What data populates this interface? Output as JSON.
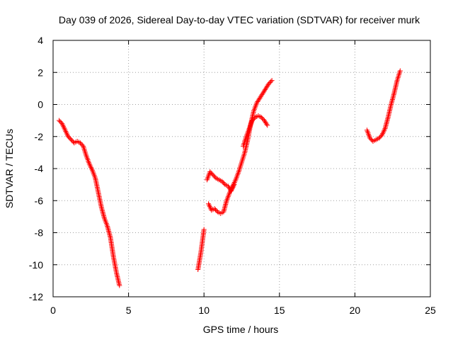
{
  "chart_data": {
    "type": "scatter",
    "title": "Day 039 of 2026, Sidereal Day-to-day VTEC variation (SDTVAR) for receiver murk",
    "xlabel": "GPS time / hours",
    "ylabel": "SDTVAR / TECUs",
    "xlim": [
      0,
      25
    ],
    "ylim": [
      -12,
      4
    ],
    "xticks": [
      0,
      5,
      10,
      15,
      20,
      25
    ],
    "yticks": [
      -12,
      -10,
      -8,
      -6,
      -4,
      -2,
      0,
      2,
      4
    ],
    "xtick_labels": [
      "0",
      "5",
      "10",
      "15",
      "20",
      "25"
    ],
    "ytick_labels": [
      "-12",
      "-10",
      "-8",
      "-6",
      "-4",
      "-2",
      "0",
      "2",
      "4"
    ],
    "grid": true,
    "marker": "plus",
    "color": "#ff0000",
    "series": [
      {
        "points": [
          [
            0.4,
            -1.0
          ],
          [
            0.6,
            -1.2
          ],
          [
            0.8,
            -1.6
          ],
          [
            1.0,
            -2.0
          ],
          [
            1.2,
            -2.2
          ],
          [
            1.4,
            -2.4
          ],
          [
            1.6,
            -2.3
          ],
          [
            1.8,
            -2.4
          ],
          [
            2.0,
            -2.6
          ],
          [
            2.2,
            -3.2
          ],
          [
            2.4,
            -3.7
          ],
          [
            2.6,
            -4.1
          ],
          [
            2.8,
            -4.6
          ],
          [
            3.0,
            -5.5
          ],
          [
            3.2,
            -6.4
          ],
          [
            3.4,
            -7.1
          ],
          [
            3.6,
            -7.6
          ],
          [
            3.8,
            -8.3
          ],
          [
            4.0,
            -9.5
          ],
          [
            4.2,
            -10.5
          ],
          [
            4.4,
            -11.3
          ]
        ]
      },
      {
        "points": [
          [
            9.6,
            -10.3
          ],
          [
            9.8,
            -9.2
          ],
          [
            10.0,
            -7.8
          ]
        ]
      },
      {
        "points": [
          [
            10.2,
            -4.7
          ],
          [
            10.4,
            -4.2
          ],
          [
            10.6,
            -4.4
          ],
          [
            10.8,
            -4.6
          ],
          [
            11.0,
            -4.7
          ],
          [
            11.2,
            -4.8
          ],
          [
            11.4,
            -5.0
          ],
          [
            11.6,
            -5.1
          ],
          [
            11.8,
            -5.4
          ],
          [
            12.0,
            -5.0
          ]
        ]
      },
      {
        "points": [
          [
            10.3,
            -6.2
          ],
          [
            10.5,
            -6.6
          ],
          [
            10.7,
            -6.5
          ],
          [
            10.9,
            -6.7
          ],
          [
            11.1,
            -6.8
          ],
          [
            11.3,
            -6.7
          ],
          [
            11.5,
            -6.0
          ],
          [
            11.7,
            -5.5
          ],
          [
            11.9,
            -5.1
          ],
          [
            12.1,
            -4.7
          ],
          [
            12.3,
            -4.2
          ],
          [
            12.5,
            -3.6
          ],
          [
            12.7,
            -3.0
          ],
          [
            12.9,
            -2.2
          ],
          [
            13.1,
            -1.2
          ],
          [
            13.3,
            -0.4
          ],
          [
            13.5,
            0.1
          ],
          [
            13.7,
            0.4
          ],
          [
            13.9,
            0.7
          ],
          [
            14.1,
            1.0
          ],
          [
            14.3,
            1.3
          ],
          [
            14.5,
            1.5
          ]
        ]
      },
      {
        "points": [
          [
            12.6,
            -2.6
          ],
          [
            12.8,
            -2.0
          ],
          [
            13.0,
            -1.5
          ],
          [
            13.2,
            -1.0
          ],
          [
            13.4,
            -0.8
          ],
          [
            13.6,
            -0.7
          ],
          [
            13.8,
            -0.8
          ],
          [
            14.0,
            -1.0
          ],
          [
            14.2,
            -1.3
          ]
        ]
      },
      {
        "points": [
          [
            20.8,
            -1.6
          ],
          [
            21.0,
            -2.1
          ],
          [
            21.2,
            -2.3
          ],
          [
            21.4,
            -2.2
          ],
          [
            21.6,
            -2.1
          ],
          [
            21.8,
            -1.9
          ],
          [
            22.0,
            -1.5
          ],
          [
            22.2,
            -0.8
          ],
          [
            22.4,
            0.0
          ],
          [
            22.6,
            0.7
          ],
          [
            22.8,
            1.5
          ],
          [
            23.0,
            2.1
          ]
        ]
      }
    ]
  }
}
